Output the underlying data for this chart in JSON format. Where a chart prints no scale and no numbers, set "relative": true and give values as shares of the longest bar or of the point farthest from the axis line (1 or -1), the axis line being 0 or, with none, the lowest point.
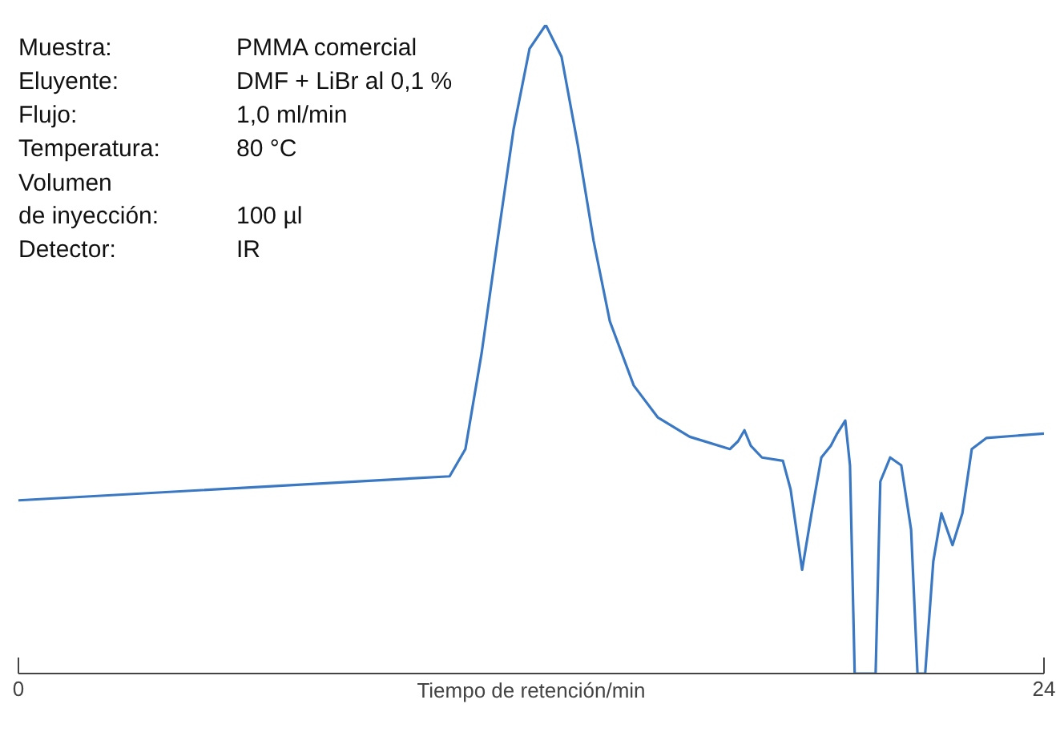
{
  "chart_data": {
    "type": "line",
    "relative": true,
    "xlabel": "Tiempo de retención/min",
    "xlim": [
      0,
      24
    ],
    "xticks": [
      0,
      24
    ],
    "grid": false,
    "marker": "none",
    "line_style": "solid",
    "x": [
      0,
      10.09,
      10.46,
      10.84,
      11.21,
      11.59,
      11.96,
      12.34,
      12.71,
      13.09,
      13.46,
      13.84,
      14.4,
      14.96,
      15.71,
      16.65,
      16.84,
      16.99,
      17.14,
      17.4,
      17.89,
      18.07,
      18.34,
      18.56,
      18.79,
      19.01,
      19.16,
      19.35,
      19.46,
      19.57,
      20.06,
      20.17,
      20.4,
      20.66,
      20.89,
      21.04,
      21.22,
      21.41,
      21.6,
      21.86,
      22.09,
      22.31,
      22.65,
      24
    ],
    "series": [
      {
        "color": "#3a78c4",
        "values": [
          0.267,
          0.304,
          0.346,
          0.494,
          0.667,
          0.84,
          0.963,
          1.0,
          0.951,
          0.815,
          0.667,
          0.543,
          0.444,
          0.395,
          0.365,
          0.346,
          0.358,
          0.375,
          0.351,
          0.333,
          0.328,
          0.284,
          0.16,
          0.247,
          0.333,
          0.351,
          0.37,
          0.39,
          0.321,
          0,
          0,
          0.296,
          0.333,
          0.321,
          0.222,
          0,
          0,
          0.173,
          0.247,
          0.198,
          0.247,
          0.346,
          0.363,
          0.37
        ]
      }
    ],
    "annotations": [
      "Muestra:",
      "PMMA comercial",
      "Eluyente:",
      "DMF + LiBr al 0,1 %",
      "Flujo:",
      "1,0 ml/min",
      "Temperatura:",
      "80 °C",
      "Volumen\nde inyección:",
      "100 µl",
      "Detector:",
      "IR"
    ]
  }
}
